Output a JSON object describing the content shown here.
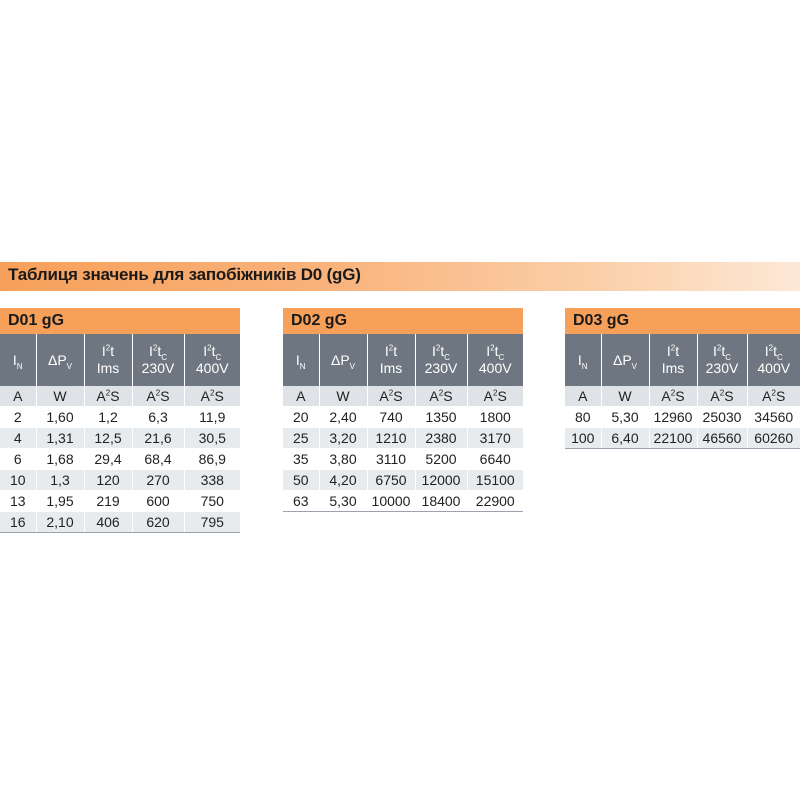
{
  "title": "Таблиця значень для запобіжників D0 (gG)",
  "columns": {
    "in_main": "I",
    "in_sub": "N",
    "dp_main": "ΔP",
    "dp_sub": "V",
    "i2t_main": "I",
    "i2t_sup": "2",
    "i2t_tail": "t",
    "i2t_line2": "Ims",
    "i2tc_main": "I",
    "i2tc_sup": "2",
    "i2tc_t": "t",
    "i2tc_sub": "C",
    "v230": "230V",
    "v400": "400V"
  },
  "units": {
    "a": "A",
    "w": "W",
    "a2s_main": "A",
    "a2s_sup": "2",
    "a2s_tail": "S"
  },
  "tables": [
    {
      "name": "D01 gG",
      "rows": [
        [
          "2",
          "1,60",
          "1,2",
          "6,3",
          "11,9"
        ],
        [
          "4",
          "1,31",
          "12,5",
          "21,6",
          "30,5"
        ],
        [
          "6",
          "1,68",
          "29,4",
          "68,4",
          "86,9"
        ],
        [
          "10",
          "1,3",
          "120",
          "270",
          "338"
        ],
        [
          "13",
          "1,95",
          "219",
          "600",
          "750"
        ],
        [
          "16",
          "2,10",
          "406",
          "620",
          "795"
        ]
      ]
    },
    {
      "name": "D02 gG",
      "rows": [
        [
          "20",
          "2,40",
          "740",
          "1350",
          "1800"
        ],
        [
          "25",
          "3,20",
          "1210",
          "2380",
          "3170"
        ],
        [
          "35",
          "3,80",
          "3110",
          "5200",
          "6640"
        ],
        [
          "50",
          "4,20",
          "6750",
          "12000",
          "15100"
        ],
        [
          "63",
          "5,30",
          "10000",
          "18400",
          "22900"
        ]
      ]
    },
    {
      "name": "D03 gG",
      "rows": [
        [
          "80",
          "5,30",
          "12960",
          "25030",
          "34560"
        ],
        [
          "100",
          "6,40",
          "22100",
          "46560",
          "60260"
        ]
      ]
    }
  ]
}
